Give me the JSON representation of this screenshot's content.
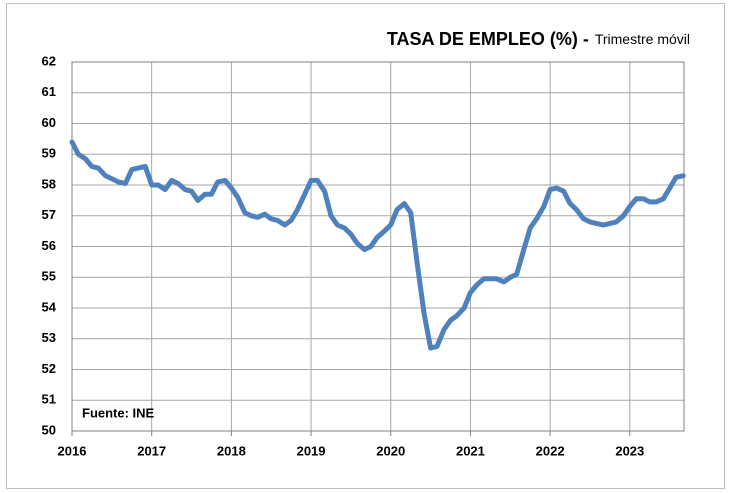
{
  "chart_data": {
    "type": "line",
    "title": "TASA DE EMPLEO (%) -",
    "subtitle": "Trimestre móvil",
    "annotation": "Fuente: INE",
    "series": [
      {
        "color": "#4f81bd",
        "x": [
          2016,
          2016.08,
          2016.17,
          2016.25,
          2016.33,
          2016.42,
          2016.5,
          2016.58,
          2016.67,
          2016.75,
          2016.83,
          2016.92,
          2017,
          2017.08,
          2017.17,
          2017.25,
          2017.33,
          2017.42,
          2017.5,
          2017.58,
          2017.67,
          2017.75,
          2017.83,
          2017.92,
          2018,
          2018.08,
          2018.17,
          2018.25,
          2018.33,
          2018.42,
          2018.5,
          2018.58,
          2018.67,
          2018.75,
          2018.83,
          2018.92,
          2019,
          2019.08,
          2019.17,
          2019.25,
          2019.33,
          2019.42,
          2019.5,
          2019.58,
          2019.67,
          2019.75,
          2019.83,
          2019.92,
          2020,
          2020.08,
          2020.17,
          2020.25,
          2020.33,
          2020.42,
          2020.5,
          2020.58,
          2020.67,
          2020.75,
          2020.83,
          2020.92,
          2021,
          2021.08,
          2021.17,
          2021.25,
          2021.33,
          2021.42,
          2021.5,
          2021.58,
          2021.67,
          2021.75,
          2021.83,
          2021.92,
          2022,
          2022.08,
          2022.17,
          2022.25,
          2022.33,
          2022.42,
          2022.5,
          2022.58,
          2022.67,
          2022.75,
          2022.83,
          2022.92,
          2023,
          2023.08,
          2023.17,
          2023.25,
          2023.33,
          2023.42,
          2023.5,
          2023.58,
          2023.67
        ],
        "values": [
          59.4,
          59.0,
          58.85,
          58.6,
          58.55,
          58.3,
          58.2,
          58.1,
          58.05,
          58.5,
          58.55,
          58.6,
          58.0,
          58.0,
          57.85,
          58.15,
          58.05,
          57.85,
          57.8,
          57.5,
          57.7,
          57.7,
          58.1,
          58.15,
          57.9,
          57.6,
          57.1,
          57.0,
          56.95,
          57.05,
          56.9,
          56.85,
          56.7,
          56.85,
          57.2,
          57.7,
          58.15,
          58.15,
          57.8,
          57.0,
          56.7,
          56.6,
          56.4,
          56.1,
          55.9,
          56.0,
          56.3,
          56.5,
          56.7,
          57.2,
          57.4,
          57.1,
          55.5,
          53.8,
          52.7,
          52.75,
          53.3,
          53.6,
          53.75,
          54.0,
          54.5,
          54.75,
          54.95,
          54.95,
          54.95,
          54.85,
          55.0,
          55.1,
          55.9,
          56.6,
          56.9,
          57.3,
          57.85,
          57.9,
          57.8,
          57.4,
          57.2,
          56.9,
          56.8,
          56.75,
          56.7,
          56.75,
          56.8,
          57.0,
          57.3,
          57.55,
          57.55,
          57.45,
          57.45,
          57.55,
          57.9,
          58.25,
          58.3
        ]
      }
    ],
    "xlim": [
      2016,
      2023.68
    ],
    "xticks": [
      2016,
      2017,
      2018,
      2019,
      2020,
      2021,
      2022,
      2023
    ],
    "ylim": [
      50,
      62
    ],
    "yticks": [
      50,
      51,
      52,
      53,
      54,
      55,
      56,
      57,
      58,
      59,
      60,
      61,
      62
    ],
    "grid": true
  }
}
